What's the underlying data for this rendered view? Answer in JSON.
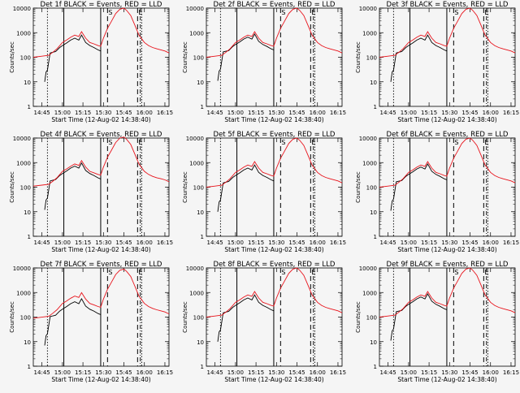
{
  "colors": {
    "background": "#f5f5f5",
    "events": "#000000",
    "lld": "#e8131b",
    "axis": "#000000"
  },
  "chart_data": {
    "type": "line",
    "layout": "3x3 grid of panels",
    "xlabel": "Start Time (12-Aug-02 14:38:40)",
    "ylabel": "Counts/sec",
    "x_ticks": [
      "14:45",
      "15:00",
      "15:15",
      "15:30",
      "15:45",
      "16:00",
      "16:15"
    ],
    "y_ticks": [
      "1",
      "10",
      "100",
      "1000",
      "10000"
    ],
    "y_scale": "log",
    "ylim": [
      1,
      10000
    ],
    "xlim": [
      "14:38:40",
      "16:18"
    ],
    "markers": [
      "S",
      "E"
    ],
    "legend": "BLACK = Events, RED = LLD",
    "panels": [
      {
        "title": "Det 1f BLACK = Events, RED = LLD"
      },
      {
        "title": "Det 2f BLACK = Events, RED = LLD"
      },
      {
        "title": "Det 3f BLACK = Events, RED = LLD"
      },
      {
        "title": "Det 4f BLACK = Events, RED = LLD"
      },
      {
        "title": "Det 5f BLACK = Events, RED = LLD"
      },
      {
        "title": "Det 6f BLACK = Events, RED = LLD"
      },
      {
        "title": "Det 7f BLACK = Events, RED = LLD"
      },
      {
        "title": "Det 8f BLACK = Events, RED = LLD"
      },
      {
        "title": "Det 9f BLACK = Events, RED = LLD"
      }
    ],
    "series": [
      {
        "name": "Events",
        "color": "#000000",
        "x": [
          "14:47",
          "14:48",
          "14:49",
          "14:51",
          "14:53",
          "14:55",
          "14:58",
          "15:00",
          "15:03",
          "15:06",
          "15:09",
          "15:12",
          "15:14",
          "15:17",
          "15:20",
          "15:23",
          "15:26",
          "15:28"
        ],
        "values": [
          10,
          25,
          30,
          150,
          160,
          170,
          250,
          300,
          380,
          500,
          600,
          500,
          800,
          400,
          300,
          250,
          200,
          180
        ]
      },
      {
        "name": "LLD",
        "color": "#e8131b",
        "x": [
          "14:38",
          "14:45",
          "14:50",
          "14:53",
          "14:56",
          "15:00",
          "15:03",
          "15:06",
          "15:09",
          "15:12",
          "15:14",
          "15:17",
          "15:20",
          "15:23",
          "15:26",
          "15:28",
          "15:30",
          "15:33",
          "15:36",
          "15:39",
          "15:42",
          "15:45",
          "15:47",
          "15:50",
          "15:53",
          "15:56",
          "16:00",
          "16:03",
          "16:06",
          "16:09",
          "16:12",
          "16:15",
          "16:18"
        ],
        "values": [
          100,
          110,
          120,
          160,
          220,
          400,
          500,
          650,
          800,
          700,
          1100,
          600,
          400,
          350,
          300,
          280,
          600,
          1500,
          3000,
          6000,
          9000,
          10000,
          8000,
          5000,
          2000,
          800,
          400,
          300,
          250,
          220,
          200,
          180,
          150
        ]
      }
    ]
  }
}
